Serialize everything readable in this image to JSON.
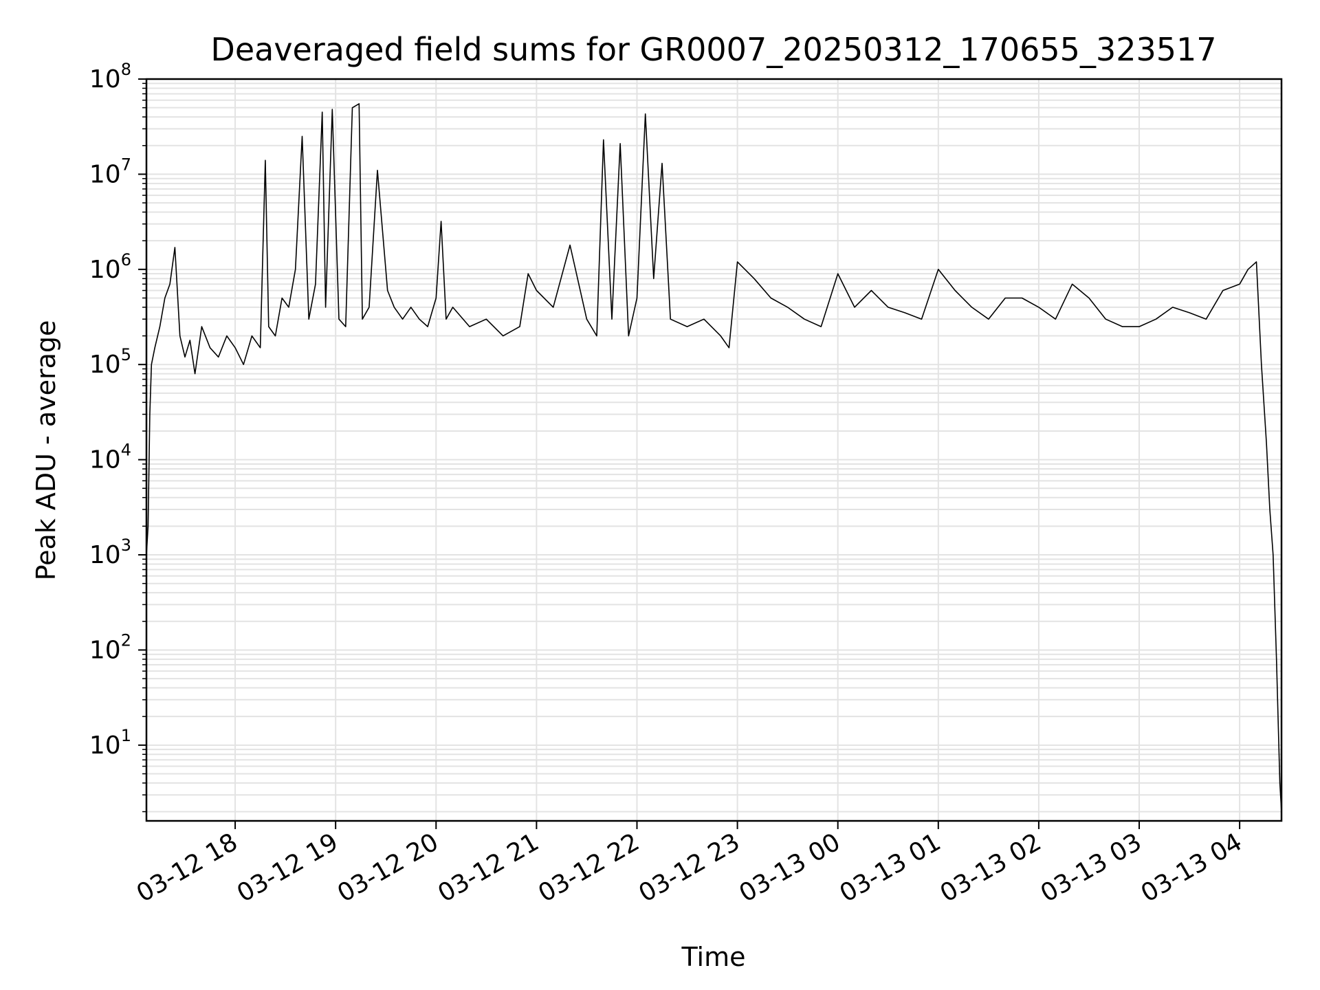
{
  "chart_data": {
    "type": "line",
    "title": "Deaveraged field sums for GR0007_20250312_170655_323517",
    "xlabel": "Time",
    "ylabel": "Peak ADU - average",
    "yscale": "log",
    "ylim": [
      1.6,
      100000000
    ],
    "xlim": [
      "2025-03-12 17:07",
      "2025-03-13 04:25"
    ],
    "grid": true,
    "line_color": "#000000",
    "grid_color": "#e3e3e3",
    "y_ticks": [
      {
        "value": 10,
        "base": "10",
        "exp": "1"
      },
      {
        "value": 100,
        "base": "10",
        "exp": "2"
      },
      {
        "value": 1000,
        "base": "10",
        "exp": "3"
      },
      {
        "value": 10000,
        "base": "10",
        "exp": "4"
      },
      {
        "value": 100000,
        "base": "10",
        "exp": "5"
      },
      {
        "value": 1000000,
        "base": "10",
        "exp": "6"
      },
      {
        "value": 10000000,
        "base": "10",
        "exp": "7"
      },
      {
        "value": 100000000,
        "base": "10",
        "exp": "8"
      }
    ],
    "x_ticks": [
      {
        "time": "2025-03-12 18:00",
        "label": "03-12 18"
      },
      {
        "time": "2025-03-12 19:00",
        "label": "03-12 19"
      },
      {
        "time": "2025-03-12 20:00",
        "label": "03-12 20"
      },
      {
        "time": "2025-03-12 21:00",
        "label": "03-12 21"
      },
      {
        "time": "2025-03-12 22:00",
        "label": "03-12 22"
      },
      {
        "time": "2025-03-12 23:00",
        "label": "03-12 23"
      },
      {
        "time": "2025-03-13 00:00",
        "label": "03-13 00"
      },
      {
        "time": "2025-03-13 01:00",
        "label": "03-13 01"
      },
      {
        "time": "2025-03-13 02:00",
        "label": "03-13 02"
      },
      {
        "time": "2025-03-13 03:00",
        "label": "03-13 03"
      },
      {
        "time": "2025-03-13 04:00",
        "label": "03-13 04"
      }
    ],
    "series": [
      {
        "x": [
          "2025-03-12 17:07",
          "2025-03-12 17:08",
          "2025-03-12 17:09",
          "2025-03-12 17:10",
          "2025-03-12 17:12",
          "2025-03-12 17:15",
          "2025-03-12 17:18",
          "2025-03-12 17:21",
          "2025-03-12 17:24",
          "2025-03-12 17:27",
          "2025-03-12 17:30",
          "2025-03-12 17:33",
          "2025-03-12 17:36",
          "2025-03-12 17:40",
          "2025-03-12 17:45",
          "2025-03-12 17:50",
          "2025-03-12 17:55",
          "2025-03-12 18:00",
          "2025-03-12 18:05",
          "2025-03-12 18:10",
          "2025-03-12 18:15",
          "2025-03-12 18:18",
          "2025-03-12 18:20",
          "2025-03-12 18:24",
          "2025-03-12 18:28",
          "2025-03-12 18:32",
          "2025-03-12 18:36",
          "2025-03-12 18:40",
          "2025-03-12 18:44",
          "2025-03-12 18:48",
          "2025-03-12 18:52",
          "2025-03-12 18:54",
          "2025-03-12 18:58",
          "2025-03-12 19:02",
          "2025-03-12 19:06",
          "2025-03-12 19:10",
          "2025-03-12 19:14",
          "2025-03-12 19:16",
          "2025-03-12 19:20",
          "2025-03-12 19:25",
          "2025-03-12 19:31",
          "2025-03-12 19:35",
          "2025-03-12 19:40",
          "2025-03-12 19:45",
          "2025-03-12 19:50",
          "2025-03-12 19:55",
          "2025-03-12 20:00",
          "2025-03-12 20:03",
          "2025-03-12 20:06",
          "2025-03-12 20:10",
          "2025-03-12 20:20",
          "2025-03-12 20:30",
          "2025-03-12 20:40",
          "2025-03-12 20:50",
          "2025-03-12 20:55",
          "2025-03-12 21:00",
          "2025-03-12 21:10",
          "2025-03-12 21:20",
          "2025-03-12 21:30",
          "2025-03-12 21:36",
          "2025-03-12 21:40",
          "2025-03-12 21:45",
          "2025-03-12 21:50",
          "2025-03-12 21:55",
          "2025-03-12 22:00",
          "2025-03-12 22:05",
          "2025-03-12 22:10",
          "2025-03-12 22:15",
          "2025-03-12 22:20",
          "2025-03-12 22:30",
          "2025-03-12 22:40",
          "2025-03-12 22:50",
          "2025-03-12 22:55",
          "2025-03-12 23:00",
          "2025-03-12 23:10",
          "2025-03-12 23:20",
          "2025-03-12 23:30",
          "2025-03-12 23:40",
          "2025-03-12 23:50",
          "2025-03-13 00:00",
          "2025-03-13 00:10",
          "2025-03-13 00:20",
          "2025-03-13 00:30",
          "2025-03-13 00:40",
          "2025-03-13 00:50",
          "2025-03-13 01:00",
          "2025-03-13 01:10",
          "2025-03-13 01:20",
          "2025-03-13 01:30",
          "2025-03-13 01:40",
          "2025-03-13 01:50",
          "2025-03-13 02:00",
          "2025-03-13 02:10",
          "2025-03-13 02:20",
          "2025-03-13 02:30",
          "2025-03-13 02:40",
          "2025-03-13 02:50",
          "2025-03-13 03:00",
          "2025-03-13 03:10",
          "2025-03-13 03:20",
          "2025-03-13 03:30",
          "2025-03-13 03:40",
          "2025-03-13 03:50",
          "2025-03-13 04:00",
          "2025-03-13 04:05",
          "2025-03-13 04:10",
          "2025-03-13 04:13",
          "2025-03-13 04:16",
          "2025-03-13 04:18",
          "2025-03-13 04:20",
          "2025-03-13 04:22",
          "2025-03-13 04:24",
          "2025-03-13 04:25"
        ],
        "y": [
          1000,
          2000,
          30000,
          100000,
          150000,
          250000,
          500000,
          700000,
          1700000,
          200000,
          120000,
          180000,
          80000,
          250000,
          150000,
          120000,
          200000,
          150000,
          100000,
          200000,
          150000,
          14000000,
          250000,
          200000,
          500000,
          400000,
          1000000,
          25000000,
          300000,
          700000,
          45000000,
          400000,
          48000000,
          300000,
          250000,
          50000000,
          55000000,
          300000,
          400000,
          11000000,
          600000,
          400000,
          300000,
          400000,
          300000,
          250000,
          500000,
          3200000,
          300000,
          400000,
          250000,
          300000,
          200000,
          250000,
          900000,
          600000,
          400000,
          1800000,
          300000,
          200000,
          23000000,
          300000,
          21000000,
          200000,
          500000,
          43000000,
          800000,
          13000000,
          300000,
          250000,
          300000,
          200000,
          150000,
          1200000,
          800000,
          500000,
          400000,
          300000,
          250000,
          900000,
          400000,
          600000,
          400000,
          350000,
          300000,
          1000000,
          600000,
          400000,
          300000,
          500000,
          500000,
          400000,
          300000,
          700000,
          500000,
          300000,
          250000,
          250000,
          300000,
          400000,
          350000,
          300000,
          600000,
          700000,
          1000000,
          1200000,
          100000,
          15000,
          3000,
          1000,
          80,
          4,
          2
        ]
      }
    ]
  }
}
